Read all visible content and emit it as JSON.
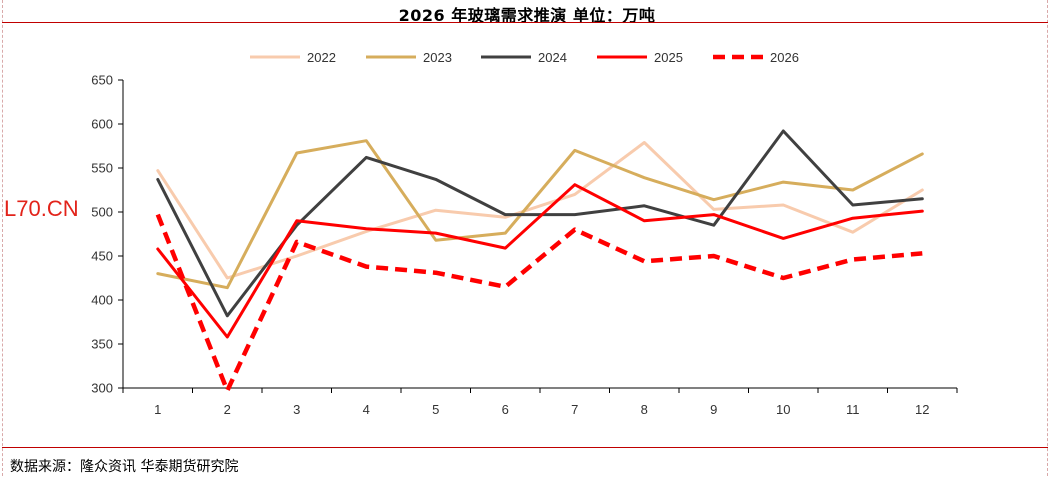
{
  "header": {
    "title": "2026 年玻璃需求推演    单位：万吨"
  },
  "footer": {
    "source": "数据来源：隆众资讯  华泰期货研究院"
  },
  "watermark": {
    "text": "L70.CN"
  },
  "chart_data": {
    "type": "line",
    "title": "2026 年玻璃需求推演    单位：万吨",
    "x": [
      1,
      2,
      3,
      4,
      5,
      6,
      7,
      8,
      9,
      10,
      11,
      12
    ],
    "ylim": [
      300,
      650
    ],
    "yticks": [
      300,
      350,
      400,
      450,
      500,
      550,
      600,
      650
    ],
    "grid": false,
    "legend": "top",
    "series": [
      {
        "name": "2022",
        "color": "#f8cbad",
        "dash": false,
        "width": 3,
        "values": [
          547,
          425,
          450,
          478,
          502,
          494,
          520,
          579,
          503,
          508,
          477,
          525
        ]
      },
      {
        "name": "2023",
        "color": "#d6ad5c",
        "dash": false,
        "width": 3,
        "values": [
          430,
          414,
          567,
          581,
          468,
          476,
          570,
          539,
          514,
          534,
          525,
          566
        ]
      },
      {
        "name": "2024",
        "color": "#404040",
        "dash": false,
        "width": 3,
        "values": [
          537,
          382,
          485,
          562,
          537,
          497,
          497,
          507,
          485,
          592,
          508,
          515
        ]
      },
      {
        "name": "2025",
        "color": "#ff0000",
        "dash": false,
        "width": 3,
        "values": [
          458,
          358,
          490,
          481,
          476,
          459,
          531,
          490,
          497,
          470,
          493,
          501
        ]
      },
      {
        "name": "2026",
        "color": "#ff0000",
        "dash": true,
        "width": 4.5,
        "values": [
          497,
          297,
          466,
          438,
          431,
          415,
          480,
          444,
          450,
          425,
          446,
          453
        ]
      }
    ]
  }
}
